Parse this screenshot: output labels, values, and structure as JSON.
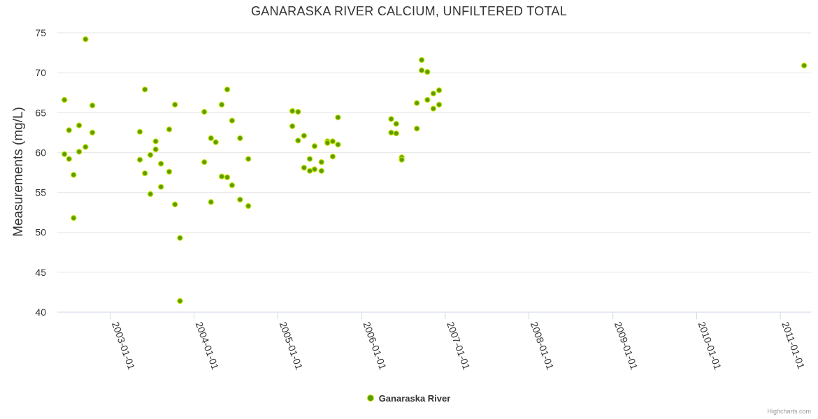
{
  "chart_data": {
    "type": "scatter",
    "title": "GANARASKA RIVER CALCIUM, UNFILTERED TOTAL",
    "xlabel": "",
    "ylabel": "Measurements (mg/L)",
    "ylim": [
      40,
      75
    ],
    "yticks": [
      40,
      45,
      50,
      55,
      60,
      65,
      70,
      75
    ],
    "xlim": [
      "2002-05-15",
      "2011-05-15"
    ],
    "xticks": [
      "2003-01-01",
      "2004-01-01",
      "2005-01-01",
      "2006-01-01",
      "2007-01-01",
      "2008-01-01",
      "2009-01-01",
      "2010-01-01",
      "2011-01-01"
    ],
    "series": [
      {
        "name": "Ganaraska River",
        "color": "#5a9e00",
        "points": [
          [
            "2002-06-15",
            66.6
          ],
          [
            "2002-06-15",
            59.8
          ],
          [
            "2002-07-05",
            62.8
          ],
          [
            "2002-07-05",
            59.2
          ],
          [
            "2002-07-25",
            57.2
          ],
          [
            "2002-07-25",
            51.8
          ],
          [
            "2002-08-18",
            63.4
          ],
          [
            "2002-08-18",
            60.1
          ],
          [
            "2002-09-15",
            74.2
          ],
          [
            "2002-09-15",
            60.7
          ],
          [
            "2002-10-15",
            65.9
          ],
          [
            "2002-10-15",
            62.5
          ],
          [
            "2003-05-10",
            62.6
          ],
          [
            "2003-05-10",
            59.1
          ],
          [
            "2003-06-01",
            67.9
          ],
          [
            "2003-06-01",
            57.4
          ],
          [
            "2003-06-25",
            59.7
          ],
          [
            "2003-06-25",
            54.8
          ],
          [
            "2003-07-18",
            61.4
          ],
          [
            "2003-07-18",
            60.4
          ],
          [
            "2003-08-10",
            58.6
          ],
          [
            "2003-08-10",
            55.7
          ],
          [
            "2003-09-15",
            62.9
          ],
          [
            "2003-09-15",
            57.6
          ],
          [
            "2003-10-10",
            66.0
          ],
          [
            "2003-10-10",
            53.5
          ],
          [
            "2003-11-01",
            49.3
          ],
          [
            "2003-11-01",
            41.4
          ],
          [
            "2004-02-15",
            65.1
          ],
          [
            "2004-02-15",
            58.8
          ],
          [
            "2004-03-15",
            61.8
          ],
          [
            "2004-03-15",
            53.8
          ],
          [
            "2004-04-05",
            61.3
          ],
          [
            "2004-05-01",
            66.0
          ],
          [
            "2004-05-01",
            57.0
          ],
          [
            "2004-05-25",
            67.9
          ],
          [
            "2004-05-25",
            56.9
          ],
          [
            "2004-06-15",
            64.0
          ],
          [
            "2004-06-15",
            55.9
          ],
          [
            "2004-07-20",
            61.8
          ],
          [
            "2004-07-20",
            54.1
          ],
          [
            "2004-08-25",
            59.2
          ],
          [
            "2004-08-25",
            53.3
          ],
          [
            "2005-03-05",
            65.2
          ],
          [
            "2005-03-05",
            63.3
          ],
          [
            "2005-03-30",
            65.1
          ],
          [
            "2005-03-30",
            61.5
          ],
          [
            "2005-04-25",
            62.1
          ],
          [
            "2005-04-25",
            58.1
          ],
          [
            "2005-05-20",
            59.2
          ],
          [
            "2005-05-20",
            57.7
          ],
          [
            "2005-06-10",
            60.8
          ],
          [
            "2005-06-10",
            57.9
          ],
          [
            "2005-07-10",
            58.8
          ],
          [
            "2005-07-10",
            57.7
          ],
          [
            "2005-08-05",
            61.4
          ],
          [
            "2005-08-05",
            61.2
          ],
          [
            "2005-08-28",
            61.4
          ],
          [
            "2005-08-28",
            59.5
          ],
          [
            "2005-09-20",
            64.4
          ],
          [
            "2005-09-20",
            61.0
          ],
          [
            "2006-05-10",
            64.2
          ],
          [
            "2006-05-10",
            62.5
          ],
          [
            "2006-06-01",
            63.6
          ],
          [
            "2006-06-01",
            62.4
          ],
          [
            "2006-06-25",
            59.4
          ],
          [
            "2006-06-25",
            59.1
          ],
          [
            "2006-08-30",
            66.2
          ],
          [
            "2006-08-30",
            63.0
          ],
          [
            "2006-09-20",
            71.6
          ],
          [
            "2006-09-20",
            70.3
          ],
          [
            "2006-10-15",
            70.1
          ],
          [
            "2006-10-15",
            66.6
          ],
          [
            "2006-11-10",
            67.4
          ],
          [
            "2006-11-10",
            65.5
          ],
          [
            "2006-12-05",
            67.8
          ],
          [
            "2006-12-05",
            66.0
          ],
          [
            "2011-04-15",
            70.9
          ]
        ]
      }
    ]
  },
  "legend": {
    "label": "Ganaraska River"
  },
  "credits": "Highcharts.com"
}
